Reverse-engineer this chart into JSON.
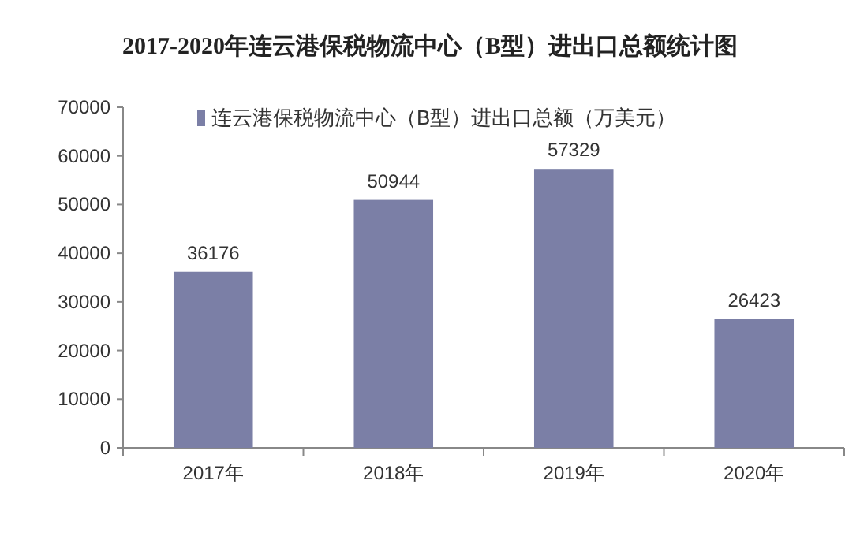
{
  "chart_data": {
    "type": "bar",
    "title": "2017-2020年连云港保税物流中心（B型）进出口总额统计图",
    "categories": [
      "2017年",
      "2018年",
      "2019年",
      "2020年"
    ],
    "series": [
      {
        "name": "连云港保税物流中心（B型）进出口总额（万美元）",
        "color": "#7b7fa6",
        "values": [
          36176,
          50944,
          57329,
          26423
        ]
      }
    ],
    "ylim": [
      0,
      70000
    ],
    "yticks": [
      0,
      10000,
      20000,
      30000,
      40000,
      50000,
      60000,
      70000
    ],
    "data_labels": true,
    "legend": "top",
    "grid": false
  }
}
